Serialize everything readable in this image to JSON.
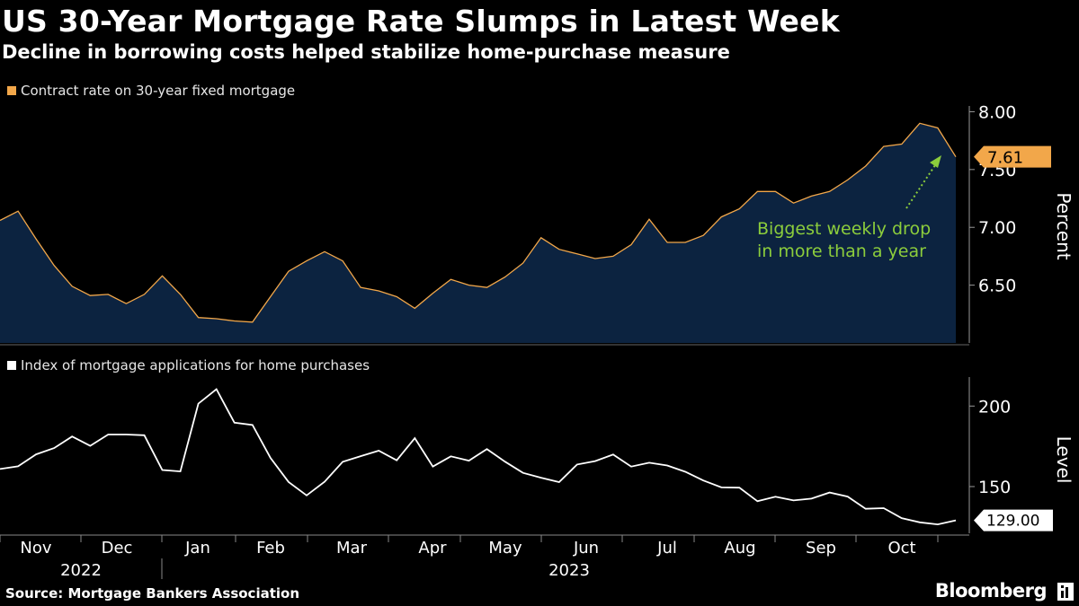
{
  "header": {
    "title": "US 30-Year Mortgage Rate Slumps in Latest Week",
    "subtitle": "Decline in borrowing costs helped stabilize home-purchase measure"
  },
  "footer": {
    "source": "Source: Mortgage Bankers Association",
    "brand": "Bloomberg"
  },
  "colors": {
    "rate_line": "#f2a74a",
    "rate_fill": "#0c2340",
    "apps_line": "#ffffff",
    "annotation": "#8ccd3c",
    "background": "#000000"
  },
  "chart_data": [
    {
      "type": "area",
      "legend": "Contract rate on 30-year fixed mortgage",
      "ylabel": "Percent",
      "ylim": [
        6.0,
        8.05
      ],
      "yticks": [
        "6.50",
        "7.00",
        "7.50",
        "8.00"
      ],
      "ytick_values": [
        6.5,
        7.0,
        7.5,
        8.0
      ],
      "last_value_label": "7.61",
      "annotation": {
        "line1": "Biggest weekly drop",
        "line2": "in more than a year"
      },
      "values": [
        7.06,
        7.14,
        6.9,
        6.67,
        6.49,
        6.41,
        6.42,
        6.34,
        6.42,
        6.58,
        6.42,
        6.22,
        6.21,
        6.19,
        6.18,
        6.4,
        6.62,
        6.71,
        6.79,
        6.71,
        6.48,
        6.45,
        6.4,
        6.3,
        6.43,
        6.55,
        6.5,
        6.48,
        6.57,
        6.69,
        6.91,
        6.81,
        6.77,
        6.73,
        6.75,
        6.85,
        7.07,
        6.87,
        6.87,
        6.93,
        7.09,
        7.16,
        7.31,
        7.31,
        7.21,
        7.27,
        7.31,
        7.41,
        7.53,
        7.7,
        7.72,
        7.9,
        7.86,
        7.61
      ]
    },
    {
      "type": "line",
      "legend": "Index of mortgage applications for home purchases",
      "ylabel": "Level",
      "ylim": [
        121,
        218
      ],
      "yticks": [
        "150",
        "200"
      ],
      "ytick_values": [
        150,
        200
      ],
      "last_value_label": "129.00",
      "values": [
        160.9,
        162.6,
        170.0,
        173.9,
        181.1,
        175.3,
        182.3,
        182.3,
        181.9,
        160.3,
        159.4,
        201.5,
        210.5,
        189.7,
        188.3,
        167.8,
        152.9,
        144.5,
        153.0,
        165.4,
        168.9,
        172.3,
        166.3,
        180.1,
        162.4,
        168.8,
        166.1,
        173.3,
        165.5,
        158.5,
        155.5,
        152.8,
        163.7,
        165.8,
        169.9,
        162.4,
        164.8,
        163.1,
        159.2,
        153.8,
        149.5,
        149.3,
        140.9,
        143.7,
        141.4,
        142.5,
        146.3,
        143.8,
        136.2,
        136.6,
        130.4,
        127.8,
        126.5,
        129.0
      ]
    }
  ],
  "xaxis": {
    "months": [
      "Nov",
      "Dec",
      "Jan",
      "Feb",
      "Mar",
      "Apr",
      "May",
      "Jun",
      "Jul",
      "Aug",
      "Sep",
      "Oct"
    ],
    "years": [
      "2022",
      "2023"
    ]
  }
}
